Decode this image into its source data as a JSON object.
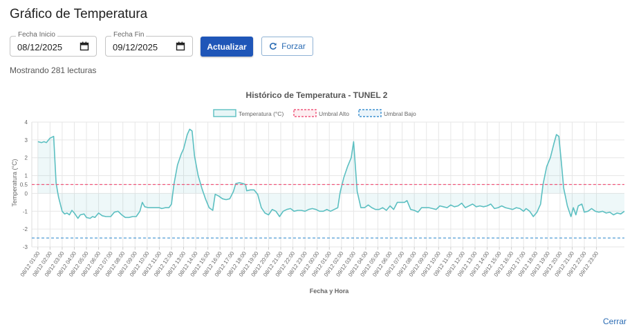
{
  "page": {
    "title": "Gráfico de Temperatura",
    "showing": "Mostrando 281 lecturas",
    "close_label": "Cerrar"
  },
  "filters": {
    "start_label": "Fecha Inicio",
    "start_value": "08/12/2025",
    "end_label": "Fecha Fin",
    "end_value": "09/12/2025",
    "update_label": "Actualizar",
    "force_label": "Forzar"
  },
  "chart_data": {
    "type": "area",
    "title": "Histórico de Temperatura - TUNEL 2",
    "xlabel": "Fecha y Hora",
    "ylabel": "Temperatura (°C)",
    "ylim": [
      -3,
      4
    ],
    "yticks": [
      4,
      3,
      2,
      1,
      0.5,
      0,
      -1,
      -2,
      -3
    ],
    "grid": true,
    "legend_position": "top",
    "colors": {
      "temperature": "#5bbfc1",
      "high": "#f0557a",
      "low": "#3a8fd0"
    },
    "categories": [
      "08/12 01:00",
      "08/12 02:00",
      "08/12 03:00",
      "08/12 04:00",
      "08/12 05:00",
      "08/12 06:00",
      "08/12 07:00",
      "08/12 08:00",
      "08/12 09:00",
      "08/12 10:00",
      "08/12 11:00",
      "08/12 12:00",
      "08/12 13:00",
      "08/12 14:00",
      "08/12 15:00",
      "08/12 16:00",
      "08/12 17:00",
      "08/12 18:00",
      "08/12 19:00",
      "08/12 20:00",
      "08/12 21:00",
      "08/12 22:00",
      "08/12 23:00",
      "09/12 00:00",
      "09/12 01:00",
      "09/12 02:00",
      "09/12 03:00",
      "09/12 04:00",
      "09/12 05:00",
      "09/12 06:00",
      "09/12 07:00",
      "09/12 08:00",
      "09/12 09:00",
      "09/12 10:00",
      "09/12 11:00",
      "09/12 12:00",
      "09/12 13:00",
      "09/12 14:00",
      "09/12 15:00",
      "09/12 16:00",
      "09/12 17:00",
      "09/12 18:00",
      "09/12 19:00",
      "09/12 20:00",
      "09/12 21:00",
      "09/12 22:00",
      "09/12 23:00"
    ],
    "series": [
      {
        "name": "Temperatura (°C)",
        "points": [
          [
            0,
            2.9
          ],
          [
            0.3,
            2.85
          ],
          [
            0.5,
            2.9
          ],
          [
            0.7,
            2.85
          ],
          [
            1.0,
            3.1
          ],
          [
            1.3,
            3.2
          ],
          [
            1.5,
            0.6
          ],
          [
            1.7,
            -0.2
          ],
          [
            2.0,
            -1.0
          ],
          [
            2.2,
            -1.15
          ],
          [
            2.4,
            -1.1
          ],
          [
            2.6,
            -1.2
          ],
          [
            2.8,
            -0.95
          ],
          [
            3.0,
            -1.1
          ],
          [
            3.3,
            -1.4
          ],
          [
            3.5,
            -1.2
          ],
          [
            3.8,
            -1.15
          ],
          [
            4.0,
            -1.35
          ],
          [
            4.3,
            -1.4
          ],
          [
            4.5,
            -1.3
          ],
          [
            4.7,
            -1.35
          ],
          [
            5.0,
            -1.1
          ],
          [
            5.3,
            -1.25
          ],
          [
            5.6,
            -1.3
          ],
          [
            6.0,
            -1.3
          ],
          [
            6.3,
            -1.05
          ],
          [
            6.6,
            -1.0
          ],
          [
            6.9,
            -1.2
          ],
          [
            7.2,
            -1.35
          ],
          [
            7.5,
            -1.35
          ],
          [
            7.8,
            -1.3
          ],
          [
            8.1,
            -1.3
          ],
          [
            8.4,
            -1.0
          ],
          [
            8.6,
            -0.5
          ],
          [
            8.8,
            -0.75
          ],
          [
            9.1,
            -0.8
          ],
          [
            9.4,
            -0.8
          ],
          [
            9.7,
            -0.8
          ],
          [
            10.0,
            -0.8
          ],
          [
            10.2,
            -0.85
          ],
          [
            10.5,
            -0.8
          ],
          [
            10.8,
            -0.8
          ],
          [
            11.0,
            -0.6
          ],
          [
            11.2,
            0.5
          ],
          [
            11.5,
            1.6
          ],
          [
            11.8,
            2.2
          ],
          [
            12.0,
            2.5
          ],
          [
            12.3,
            3.3
          ],
          [
            12.5,
            3.6
          ],
          [
            12.7,
            3.5
          ],
          [
            12.9,
            2.1
          ],
          [
            13.2,
            1.0
          ],
          [
            13.5,
            0.3
          ],
          [
            13.8,
            -0.3
          ],
          [
            14.1,
            -0.8
          ],
          [
            14.4,
            -0.95
          ],
          [
            14.6,
            -0.05
          ],
          [
            14.9,
            -0.15
          ],
          [
            15.2,
            -0.3
          ],
          [
            15.5,
            -0.35
          ],
          [
            15.8,
            -0.3
          ],
          [
            16.1,
            0.1
          ],
          [
            16.3,
            0.55
          ],
          [
            16.6,
            0.6
          ],
          [
            16.9,
            0.55
          ],
          [
            17.1,
            0.5
          ],
          [
            17.2,
            0.15
          ],
          [
            17.5,
            0.2
          ],
          [
            17.8,
            0.2
          ],
          [
            18.1,
            -0.05
          ],
          [
            18.4,
            -0.8
          ],
          [
            18.7,
            -1.1
          ],
          [
            19.0,
            -1.2
          ],
          [
            19.3,
            -0.9
          ],
          [
            19.6,
            -1.0
          ],
          [
            19.9,
            -1.3
          ],
          [
            20.2,
            -1.0
          ],
          [
            20.5,
            -0.9
          ],
          [
            20.8,
            -0.85
          ],
          [
            21.1,
            -1.0
          ],
          [
            21.4,
            -0.95
          ],
          [
            21.7,
            -0.95
          ],
          [
            22.0,
            -1.0
          ],
          [
            22.3,
            -0.9
          ],
          [
            22.6,
            -0.85
          ],
          [
            22.9,
            -0.9
          ],
          [
            23.2,
            -1.0
          ],
          [
            23.5,
            -1.0
          ],
          [
            23.8,
            -0.9
          ],
          [
            24.1,
            -1.0
          ],
          [
            24.4,
            -0.9
          ],
          [
            24.7,
            -0.8
          ],
          [
            24.9,
            0.1
          ],
          [
            25.2,
            0.9
          ],
          [
            25.5,
            1.5
          ],
          [
            25.8,
            2.0
          ],
          [
            26.0,
            2.9
          ],
          [
            26.2,
            1.0
          ],
          [
            26.3,
            0.1
          ],
          [
            26.6,
            -0.8
          ],
          [
            26.9,
            -0.8
          ],
          [
            27.2,
            -0.65
          ],
          [
            27.5,
            -0.8
          ],
          [
            27.8,
            -0.9
          ],
          [
            28.1,
            -0.9
          ],
          [
            28.4,
            -0.8
          ],
          [
            28.7,
            -0.95
          ],
          [
            29.0,
            -0.7
          ],
          [
            29.3,
            -0.9
          ],
          [
            29.6,
            -0.5
          ],
          [
            29.9,
            -0.5
          ],
          [
            30.2,
            -0.5
          ],
          [
            30.4,
            -0.4
          ],
          [
            30.7,
            -0.9
          ],
          [
            31.0,
            -0.95
          ],
          [
            31.3,
            -1.05
          ],
          [
            31.6,
            -0.8
          ],
          [
            31.9,
            -0.8
          ],
          [
            32.2,
            -0.8
          ],
          [
            32.5,
            -0.85
          ],
          [
            32.8,
            -0.9
          ],
          [
            33.1,
            -0.7
          ],
          [
            33.4,
            -0.75
          ],
          [
            33.7,
            -0.8
          ],
          [
            34.0,
            -0.65
          ],
          [
            34.3,
            -0.75
          ],
          [
            34.6,
            -0.7
          ],
          [
            34.9,
            -0.55
          ],
          [
            35.2,
            -0.8
          ],
          [
            35.5,
            -0.7
          ],
          [
            35.8,
            -0.6
          ],
          [
            36.1,
            -0.75
          ],
          [
            36.4,
            -0.7
          ],
          [
            36.7,
            -0.75
          ],
          [
            37.0,
            -0.7
          ],
          [
            37.3,
            -0.6
          ],
          [
            37.6,
            -0.85
          ],
          [
            37.9,
            -0.8
          ],
          [
            38.2,
            -0.7
          ],
          [
            38.5,
            -0.8
          ],
          [
            38.8,
            -0.85
          ],
          [
            39.1,
            -0.9
          ],
          [
            39.4,
            -0.8
          ],
          [
            39.7,
            -0.85
          ],
          [
            40.0,
            -1.0
          ],
          [
            40.2,
            -0.85
          ],
          [
            40.5,
            -1.0
          ],
          [
            40.8,
            -1.3
          ],
          [
            41.1,
            -1.05
          ],
          [
            41.4,
            -0.6
          ],
          [
            41.6,
            0.5
          ],
          [
            41.9,
            1.5
          ],
          [
            42.2,
            2.0
          ],
          [
            42.5,
            2.8
          ],
          [
            42.7,
            3.3
          ],
          [
            42.9,
            3.2
          ],
          [
            43.1,
            1.8
          ],
          [
            43.3,
            0.3
          ],
          [
            43.6,
            -0.7
          ],
          [
            43.9,
            -1.3
          ],
          [
            44.1,
            -0.8
          ],
          [
            44.3,
            -1.2
          ],
          [
            44.5,
            -0.7
          ],
          [
            44.8,
            -0.6
          ],
          [
            45.0,
            -1.05
          ],
          [
            45.3,
            -1.0
          ],
          [
            45.6,
            -0.85
          ],
          [
            45.9,
            -1.0
          ],
          [
            46.2,
            -1.05
          ],
          [
            46.5,
            -1.0
          ],
          [
            46.8,
            -1.1
          ],
          [
            47.1,
            -1.05
          ],
          [
            47.4,
            -1.2
          ],
          [
            47.7,
            -1.1
          ],
          [
            48.0,
            -1.15
          ],
          [
            48.3,
            -1.0
          ]
        ]
      }
    ],
    "thresholds": [
      {
        "name": "Umbral Alto",
        "value": 0.5
      },
      {
        "name": "Umbral Bajo",
        "value": -2.5
      }
    ]
  }
}
